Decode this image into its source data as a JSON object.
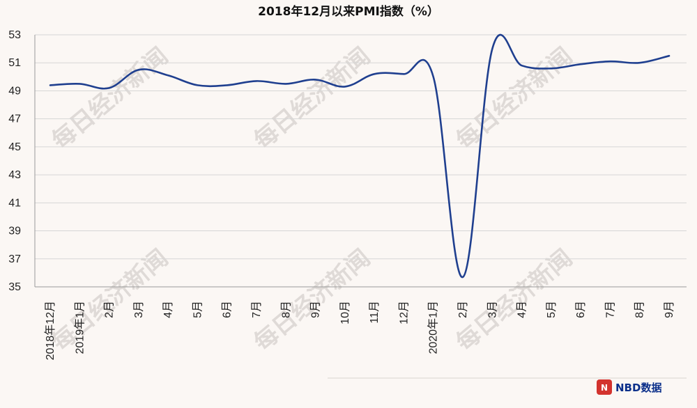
{
  "chart_data": {
    "type": "line",
    "title": "2018年12月以来PMI指数（%）",
    "xlabel": "",
    "ylabel": "",
    "categories": [
      "2018年12月",
      "2019年1月",
      "2月",
      "3月",
      "4月",
      "5月",
      "6月",
      "7月",
      "8月",
      "9月",
      "10月",
      "11月",
      "12月",
      "2020年1月",
      "2月",
      "3月",
      "4月",
      "5月",
      "6月",
      "7月",
      "8月",
      "9月"
    ],
    "series": [
      {
        "values": [
          49.4,
          49.5,
          49.2,
          50.5,
          50.1,
          49.4,
          49.4,
          49.7,
          49.5,
          49.8,
          49.3,
          50.2,
          50.2,
          50.0,
          35.7,
          52.0,
          50.8,
          50.6,
          50.9,
          51.1,
          51.0,
          51.5
        ]
      }
    ],
    "ylim": [
      35,
      53
    ],
    "yticks": [
      "35",
      "37",
      "39",
      "41",
      "43",
      "45",
      "47",
      "49",
      "51",
      "53"
    ],
    "grid": true,
    "line_color": "#1f3f8f"
  },
  "watermark": {
    "text": "每日经济新闻"
  },
  "brand": {
    "badge": "N",
    "label": "NBD数据"
  }
}
